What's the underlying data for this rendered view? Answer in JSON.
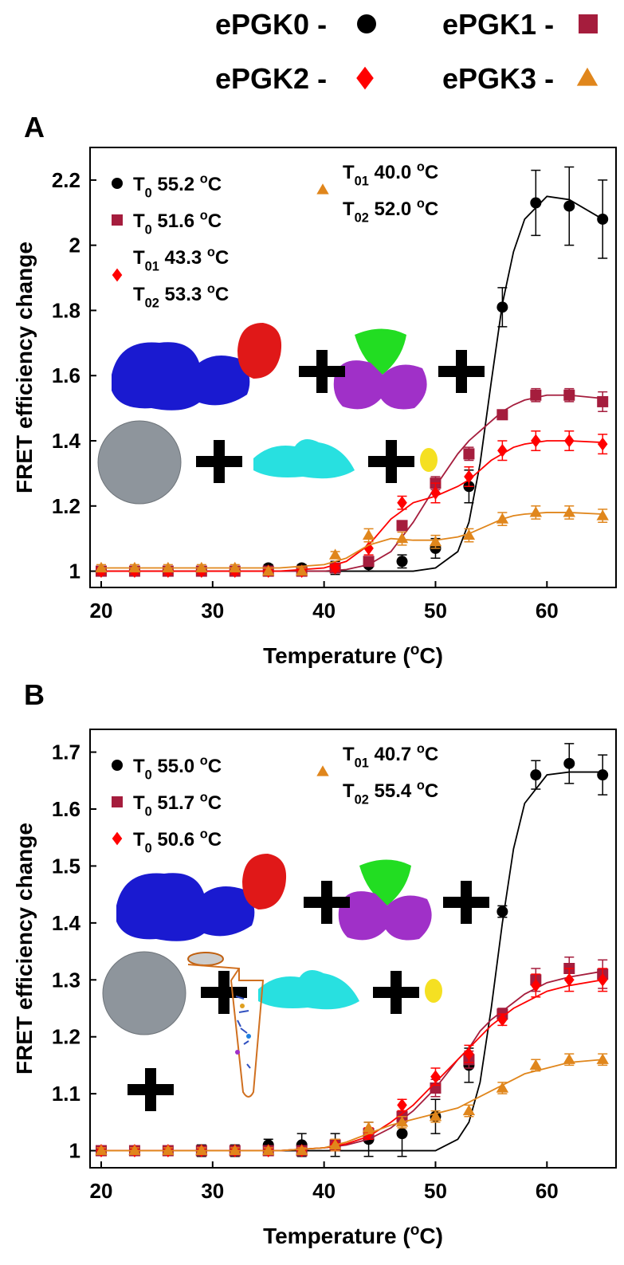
{
  "chart_data": [
    {
      "type": "scatter",
      "panel": "A",
      "ylabel": "FRET efficiency change",
      "xlabel": [
        "Temperature (",
        "o",
        "C)"
      ],
      "legend_separator": "-",
      "x": [
        20,
        23,
        26,
        29,
        32,
        35,
        38,
        41,
        44,
        47,
        50,
        53,
        56,
        59,
        62,
        65
      ],
      "xlim": [
        19,
        66.2
      ],
      "xticks": [
        20,
        30,
        40,
        50,
        60
      ],
      "ylim": [
        0.95,
        2.3
      ],
      "yticks": [
        1,
        1.2,
        1.4,
        1.6,
        1.8,
        2,
        2.2
      ],
      "series": [
        {
          "name": "ePGK0",
          "color": "#000000",
          "marker": "circle",
          "values": [
            1,
            1,
            1,
            1,
            1,
            1.01,
            1.01,
            1.01,
            1.02,
            1.03,
            1.07,
            1.26,
            1.81,
            2.13,
            2.12,
            2.08
          ],
          "errors": [
            0.01,
            0.01,
            0.01,
            0.01,
            0.01,
            0.01,
            0.01,
            0.02,
            0.02,
            0.02,
            0.03,
            0.05,
            0.06,
            0.1,
            0.12,
            0.12
          ],
          "fit": {
            "x": [
              20,
              36,
              40,
              42,
              44,
              46,
              48,
              50,
              52,
              53,
              54,
              55,
              56,
              57,
              58,
              60,
              62,
              65
            ],
            "values": [
              1,
              1,
              1,
              1,
              1,
              1,
              1,
              1.01,
              1.06,
              1.15,
              1.33,
              1.58,
              1.82,
              1.98,
              2.08,
              2.15,
              2.14,
              2.08
            ]
          },
          "annotation": [
            [
              "T",
              "0",
              " 55.2  ",
              "o",
              "C"
            ]
          ]
        },
        {
          "name": "ePGK1",
          "color": "#a51d3d",
          "marker": "square",
          "values": [
            1,
            1,
            1,
            1,
            1,
            1,
            1,
            1.01,
            1.03,
            1.14,
            1.27,
            1.36,
            1.48,
            1.54,
            1.54,
            1.52
          ],
          "errors": [
            0.01,
            0.01,
            0.01,
            0.01,
            0.01,
            0.01,
            0.01,
            0.01,
            0.01,
            0.01,
            0.02,
            0.02,
            0.01,
            0.02,
            0.02,
            0.03
          ],
          "fit": {
            "x": [
              20,
              36,
              40,
              42,
              44,
              46,
              48,
              50,
              52,
              53,
              54,
              55,
              56,
              57,
              58,
              60,
              62,
              65
            ],
            "values": [
              1,
              1,
              1,
              1.005,
              1.02,
              1.06,
              1.15,
              1.26,
              1.36,
              1.4,
              1.43,
              1.46,
              1.49,
              1.51,
              1.525,
              1.54,
              1.54,
              1.53
            ]
          },
          "annotation": [
            [
              "T",
              "0",
              " 51.6  ",
              "o",
              "C"
            ]
          ]
        },
        {
          "name": "ePGK2",
          "color": "#ff0000",
          "marker": "diamond",
          "values": [
            1,
            1,
            1,
            1,
            1,
            1,
            1,
            1.01,
            1.07,
            1.21,
            1.24,
            1.29,
            1.37,
            1.4,
            1.4,
            1.39
          ],
          "errors": [
            0.01,
            0.01,
            0.01,
            0.01,
            0.01,
            0.01,
            0.01,
            0.01,
            0.02,
            0.02,
            0.03,
            0.03,
            0.03,
            0.03,
            0.03,
            0.03
          ],
          "fit": {
            "x": [
              20,
              36,
              40,
              42,
              44,
              46,
              48,
              50,
              52,
              53,
              54,
              55,
              56,
              57,
              58,
              60,
              62,
              65
            ],
            "values": [
              1,
              1,
              1.01,
              1.03,
              1.08,
              1.16,
              1.21,
              1.23,
              1.26,
              1.28,
              1.31,
              1.34,
              1.36,
              1.38,
              1.39,
              1.4,
              1.4,
              1.395
            ]
          },
          "annotation": [
            [
              "T",
              "01",
              " 43.3  ",
              "o",
              "C"
            ],
            [
              "T",
              "02",
              " 53.3  ",
              "o",
              "C"
            ]
          ]
        },
        {
          "name": "ePGK3",
          "color": "#e0861c",
          "marker": "triangle",
          "values": [
            1.01,
            1.01,
            1.01,
            1.01,
            1.01,
            1,
            1,
            1.05,
            1.11,
            1.1,
            1.09,
            1.11,
            1.16,
            1.18,
            1.18,
            1.17
          ],
          "errors": [
            0.01,
            0.01,
            0.01,
            0.01,
            0.01,
            0.01,
            0.01,
            0.01,
            0.02,
            0.02,
            0.02,
            0.02,
            0.02,
            0.02,
            0.02,
            0.02
          ],
          "fit": {
            "x": [
              20,
              36,
              40,
              42,
              44,
              46,
              48,
              50,
              52,
              53,
              54,
              55,
              56,
              57,
              58,
              60,
              62,
              65
            ],
            "values": [
              1.01,
              1.01,
              1.02,
              1.04,
              1.08,
              1.1,
              1.095,
              1.095,
              1.105,
              1.115,
              1.13,
              1.145,
              1.16,
              1.17,
              1.175,
              1.18,
              1.18,
              1.175
            ]
          },
          "annotation": [
            [
              "T",
              "01",
              " 40.0  ",
              "o",
              "C"
            ],
            [
              "T",
              "02",
              " 52.0  ",
              "o",
              "C"
            ]
          ]
        }
      ]
    },
    {
      "type": "scatter",
      "panel": "B",
      "ylabel": "FRET efficiency change",
      "xlabel": [
        "Temperature (",
        "o",
        "C)"
      ],
      "x": [
        20,
        23,
        26,
        29,
        32,
        35,
        38,
        41,
        44,
        47,
        50,
        53,
        56,
        59,
        62,
        65
      ],
      "xlim": [
        19,
        66.2
      ],
      "xticks": [
        20,
        30,
        40,
        50,
        60
      ],
      "ylim": [
        0.97,
        1.74
      ],
      "yticks": [
        1,
        1.1,
        1.2,
        1.3,
        1.4,
        1.5,
        1.6,
        1.7
      ],
      "series": [
        {
          "color": "#000000",
          "marker": "circle",
          "values": [
            1,
            1,
            1,
            1,
            1,
            1.01,
            1.01,
            1.01,
            1.02,
            1.03,
            1.06,
            1.15,
            1.42,
            1.66,
            1.68,
            1.66
          ],
          "errors": [
            0.005,
            0.005,
            0.005,
            0.01,
            0.01,
            0.01,
            0.02,
            0.02,
            0.03,
            0.04,
            0.03,
            0.03,
            0.01,
            0.025,
            0.035,
            0.035
          ],
          "fit": {
            "x": [
              20,
              36,
              40,
              42,
              44,
              46,
              48,
              50,
              52,
              53,
              54,
              55,
              56,
              57,
              58,
              60,
              62,
              65
            ],
            "values": [
              1,
              1,
              1,
              1,
              1,
              1,
              1,
              1,
              1.02,
              1.05,
              1.12,
              1.25,
              1.4,
              1.53,
              1.61,
              1.66,
              1.665,
              1.665
            ]
          },
          "annotation": [
            [
              "T",
              "0",
              " 55.0  ",
              "o",
              "C"
            ]
          ]
        },
        {
          "color": "#a51d3d",
          "marker": "square",
          "values": [
            1,
            1,
            1,
            1,
            1,
            1,
            1,
            1.01,
            1.03,
            1.06,
            1.11,
            1.16,
            1.24,
            1.3,
            1.32,
            1.31
          ],
          "errors": [
            0.005,
            0.005,
            0.005,
            0.005,
            0.005,
            0.005,
            0.005,
            0.01,
            0.01,
            0.01,
            0.015,
            0.015,
            0.01,
            0.02,
            0.02,
            0.025
          ],
          "fit": {
            "x": [
              20,
              36,
              40,
              42,
              44,
              46,
              48,
              50,
              52,
              53,
              54,
              55,
              56,
              57,
              58,
              60,
              62,
              65
            ],
            "values": [
              1,
              1,
              1.005,
              1.01,
              1.02,
              1.04,
              1.07,
              1.11,
              1.16,
              1.18,
              1.21,
              1.23,
              1.245,
              1.26,
              1.275,
              1.295,
              1.305,
              1.315
            ]
          },
          "annotation": [
            [
              "T",
              "0",
              " 51.7  ",
              "o",
              "C"
            ]
          ]
        },
        {
          "color": "#ff0000",
          "marker": "diamond",
          "values": [
            1,
            1,
            1,
            1,
            1,
            1,
            1,
            1.01,
            1.03,
            1.08,
            1.13,
            1.17,
            1.23,
            1.29,
            1.3,
            1.3
          ],
          "errors": [
            0.005,
            0.005,
            0.005,
            0.005,
            0.005,
            0.005,
            0.005,
            0.01,
            0.01,
            0.01,
            0.015,
            0.015,
            0.01,
            0.02,
            0.02,
            0.02
          ],
          "fit": {
            "x": [
              20,
              36,
              40,
              42,
              44,
              46,
              48,
              50,
              52,
              53,
              54,
              55,
              56,
              57,
              58,
              60,
              62,
              65
            ],
            "values": [
              1,
              1,
              1.005,
              1.012,
              1.025,
              1.05,
              1.08,
              1.12,
              1.16,
              1.18,
              1.2,
              1.22,
              1.235,
              1.25,
              1.26,
              1.28,
              1.29,
              1.3
            ]
          },
          "annotation": [
            [
              "T",
              "0",
              " 50.6  ",
              "o",
              "C"
            ]
          ]
        },
        {
          "color": "#e0861c",
          "marker": "triangle",
          "values": [
            1,
            1,
            1,
            1,
            1,
            1,
            1,
            1.01,
            1.04,
            1.05,
            1.06,
            1.07,
            1.11,
            1.15,
            1.16,
            1.16
          ],
          "errors": [
            0.005,
            0.005,
            0.005,
            0.005,
            0.005,
            0.005,
            0.005,
            0.01,
            0.01,
            0.01,
            0.01,
            0.01,
            0.01,
            0.01,
            0.01,
            0.01
          ],
          "fit": {
            "x": [
              20,
              36,
              40,
              42,
              44,
              46,
              48,
              50,
              52,
              53,
              54,
              55,
              56,
              57,
              58,
              60,
              62,
              65
            ],
            "values": [
              1,
              1,
              1.005,
              1.015,
              1.03,
              1.045,
              1.055,
              1.065,
              1.075,
              1.085,
              1.095,
              1.105,
              1.115,
              1.125,
              1.135,
              1.145,
              1.155,
              1.16
            ]
          },
          "annotation": [
            [
              "T",
              "01",
              " 40.7  ",
              "o",
              "C"
            ],
            [
              "T",
              "02",
              " 55.4  ",
              "o",
              "C"
            ]
          ]
        }
      ]
    }
  ]
}
